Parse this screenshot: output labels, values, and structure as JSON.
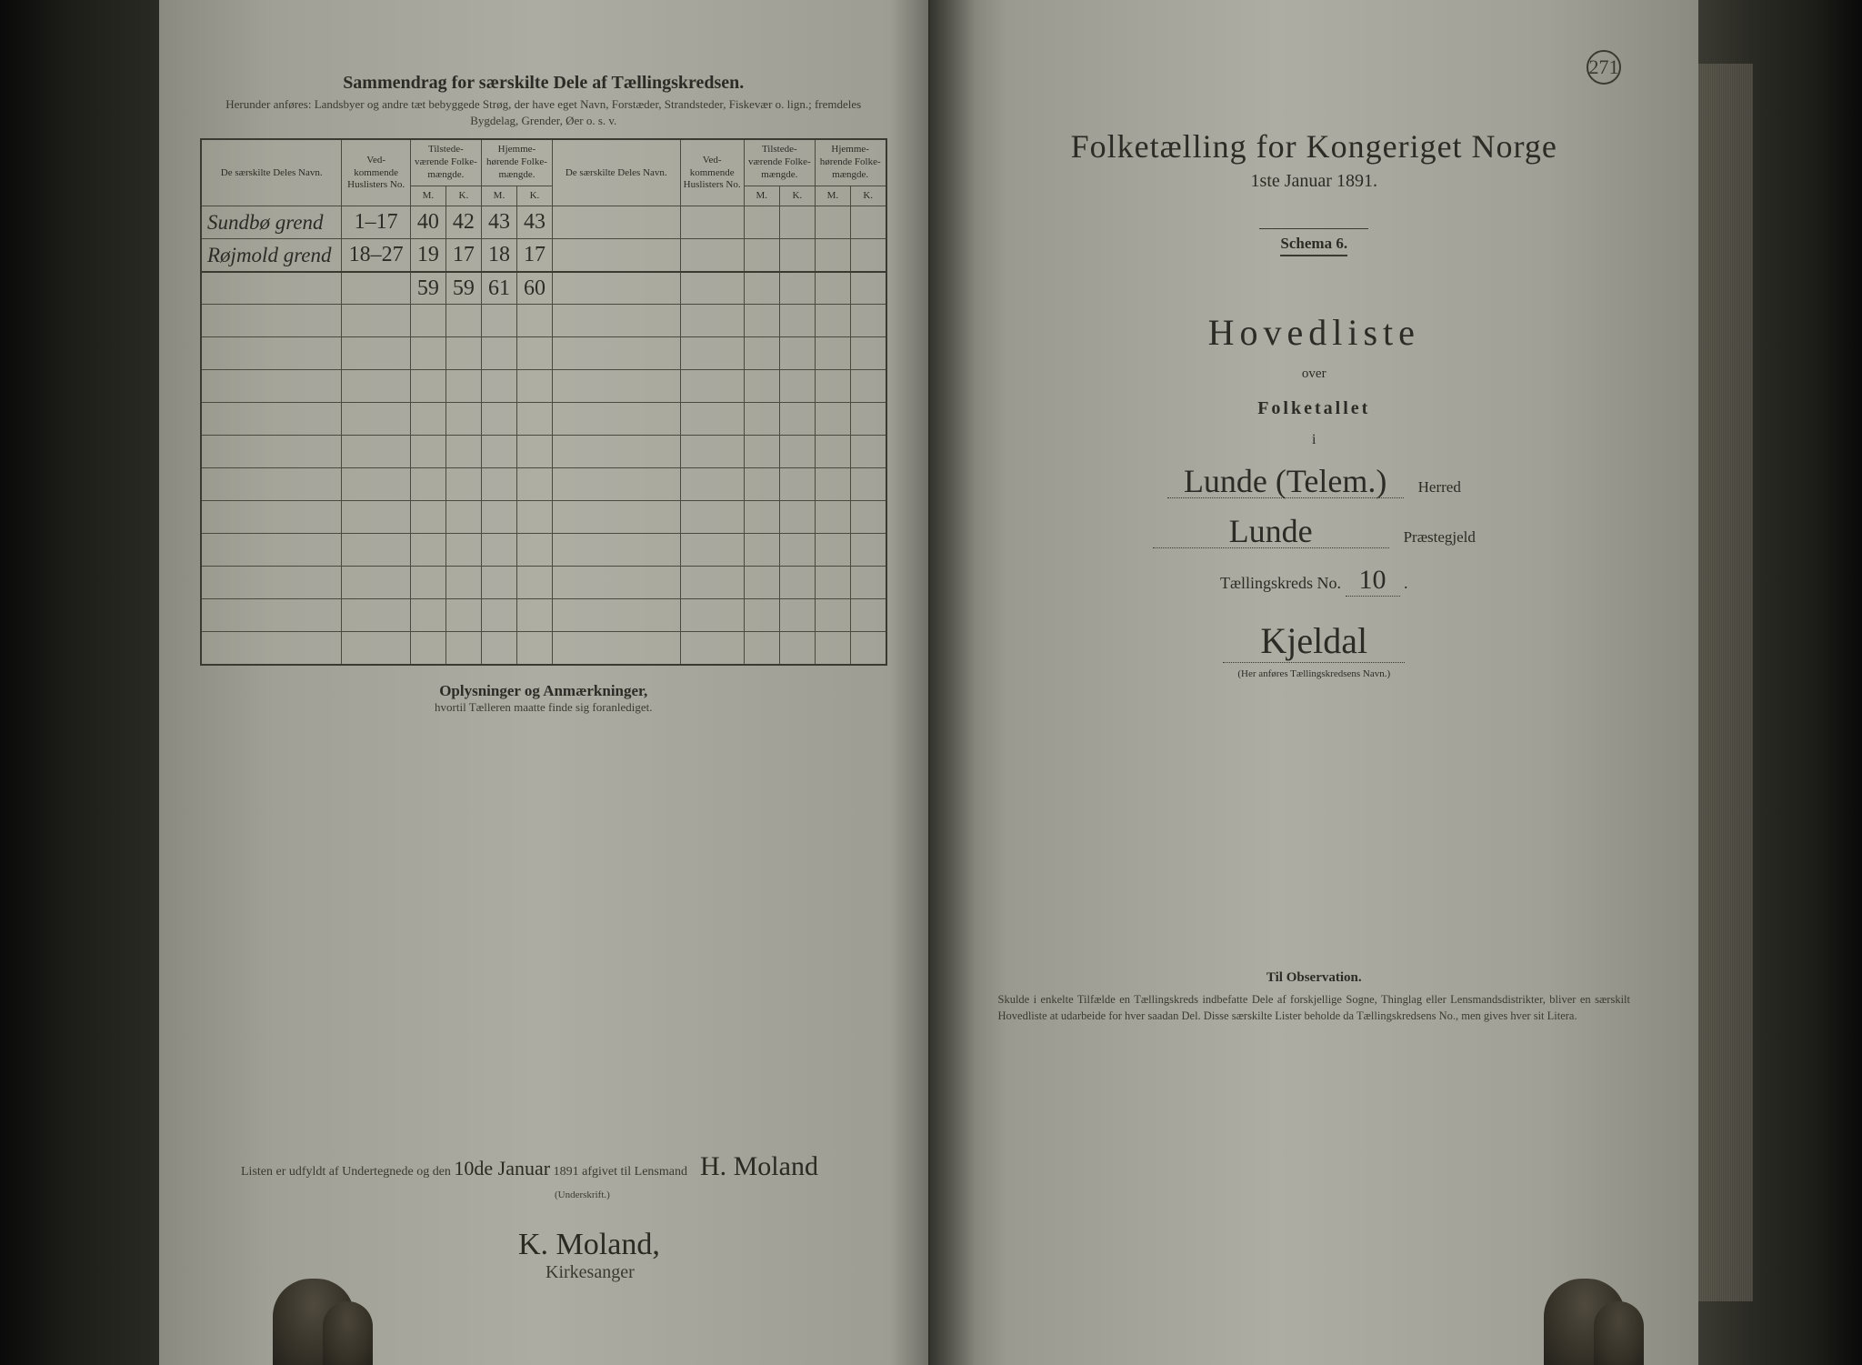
{
  "page_number": "271",
  "left": {
    "header_title": "Sammendrag for særskilte Dele af Tællingskredsen.",
    "header_subtitle": "Herunder anføres: Landsbyer og andre tæt bebyggede Strøg, der have eget Navn, Forstæder, Strandsteder, Fiskevær o. lign.; fremdeles Bygdelag, Grender, Øer o. s. v.",
    "columns": {
      "navn": "De særskilte Deles Navn.",
      "huslister": "Ved-\nkommende\nHuslisters\nNo.",
      "tilstede": "Tilstede-\nværende\nFolke-\nmængde.",
      "hjemme": "Hjemme-\nhørende\nFolke-\nmængde.",
      "m": "M.",
      "k": "K."
    },
    "rows": [
      {
        "navn": "Sundbø grend",
        "no": "1–17",
        "tm": "40",
        "tk": "42",
        "hm": "43",
        "hk": "43"
      },
      {
        "navn": "Røjmold grend",
        "no": "18–27",
        "tm": "19",
        "tk": "17",
        "hm": "18",
        "hk": "17"
      }
    ],
    "totals": {
      "tm": "59",
      "tk": "59",
      "hm": "61",
      "hk": "60"
    },
    "empty_row_count": 11,
    "oplysninger_title": "Oplysninger og Anmærkninger,",
    "oplysninger_sub": "hvortil Tælleren maatte finde sig foranlediget.",
    "signature_line": "Listen er udfyldt af Undertegnede og den",
    "signature_date": "10de Januar",
    "signature_year": "1891 afgivet til Lensmand",
    "signature_lensmand": "H. Moland",
    "underskrift_label": "(Underskrift.)",
    "signature_name": "K. Moland,",
    "signature_role": "Kirkesanger"
  },
  "right": {
    "title": "Folketælling for Kongeriget Norge",
    "date": "1ste Januar 1891.",
    "schema": "Schema 6.",
    "hovedliste": "Hovedliste",
    "over": "over",
    "folketallet": "Folketallet",
    "i": "i",
    "herred_value": "Lunde (Telem.)",
    "herred_label": "Herred",
    "prestegjeld_value": "Lunde",
    "prestegjeld_label": "Præstegjeld",
    "kreds_label": "Tællingskreds No.",
    "kreds_no": "10",
    "kreds_name": "Kjeldal",
    "kreds_note": "(Her anføres Tællingskredsens Navn.)",
    "obs_title": "Til Observation.",
    "obs_text": "Skulde i enkelte Tilfælde en Tællingskreds indbefatte Dele af forskjellige Sogne, Thinglag eller Lensmandsdistrikter, bliver en særskilt Hovedliste at udarbeide for hver saadan Del. Disse særskilte Lister beholde da Tællingskredsens No., men gives hver sit Litera."
  },
  "style": {
    "page_bg_left": "#acaca2",
    "page_bg_right": "#adada3",
    "ink": "#2c2c26",
    "border": "#3a3a32"
  }
}
